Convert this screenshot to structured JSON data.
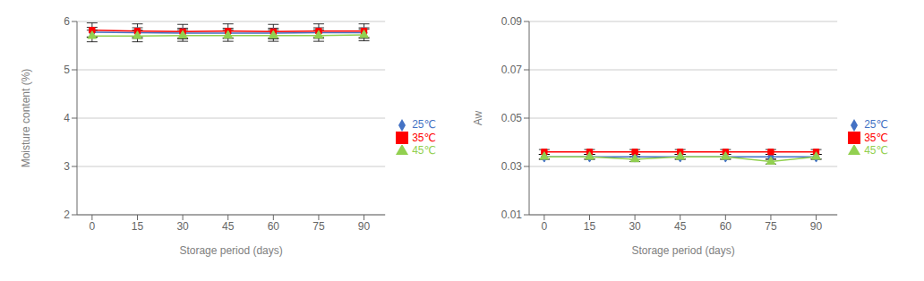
{
  "chart_data": [
    {
      "type": "line",
      "xlabel": "Storage period (days)",
      "ylabel": "Moisture content (%)",
      "x": [
        0,
        15,
        30,
        45,
        60,
        75,
        90
      ],
      "xlim": [
        -5,
        97
      ],
      "xticks": [
        0,
        15,
        30,
        45,
        60,
        75,
        90
      ],
      "ylim": [
        2,
        6
      ],
      "yticks": [
        2,
        3,
        4,
        5,
        6
      ],
      "grid": true,
      "legend": "right",
      "series": [
        {
          "name": "25℃",
          "color": "#4472C4",
          "marker": "diamond",
          "values": [
            5.78,
            5.77,
            5.76,
            5.76,
            5.76,
            5.77,
            5.77
          ],
          "errors": [
            0.1,
            0.1,
            0.1,
            0.1,
            0.1,
            0.1,
            0.1
          ]
        },
        {
          "name": "35℃",
          "color": "#FF0000",
          "marker": "square",
          "values": [
            5.82,
            5.8,
            5.79,
            5.8,
            5.79,
            5.8,
            5.8
          ],
          "errors": [
            0.15,
            0.15,
            0.15,
            0.15,
            0.15,
            0.15,
            0.15
          ]
        },
        {
          "name": "45℃",
          "color": "#92D050",
          "marker": "triangle",
          "values": [
            5.7,
            5.7,
            5.71,
            5.71,
            5.71,
            5.71,
            5.72
          ],
          "errors": [
            0.12,
            0.12,
            0.12,
            0.12,
            0.12,
            0.12,
            0.12
          ]
        }
      ]
    },
    {
      "type": "line",
      "xlabel": "Storage period (days)",
      "ylabel": "Aw",
      "x": [
        0,
        15,
        30,
        45,
        60,
        75,
        90
      ],
      "xlim": [
        -5,
        97
      ],
      "xticks": [
        0,
        15,
        30,
        45,
        60,
        75,
        90
      ],
      "ylim": [
        0.01,
        0.09
      ],
      "yticks": [
        0.01,
        0.03,
        0.05,
        0.07,
        0.09
      ],
      "grid": true,
      "legend": "right",
      "series": [
        {
          "name": "25℃",
          "color": "#4472C4",
          "marker": "diamond",
          "values": [
            0.034,
            0.034,
            0.034,
            0.034,
            0.034,
            0.034,
            0.034
          ],
          "errors": [
            0.001,
            0.001,
            0.001,
            0.001,
            0.001,
            0.001,
            0.001
          ]
        },
        {
          "name": "35℃",
          "color": "#FF0000",
          "marker": "square",
          "values": [
            0.036,
            0.036,
            0.036,
            0.036,
            0.036,
            0.036,
            0.036
          ],
          "errors": [
            0.001,
            0.001,
            0.001,
            0.001,
            0.001,
            0.001,
            0.001
          ]
        },
        {
          "name": "45℃",
          "color": "#92D050",
          "marker": "triangle",
          "values": [
            0.034,
            0.034,
            0.033,
            0.034,
            0.034,
            0.032,
            0.034
          ],
          "errors": [
            0.001,
            0.001,
            0.001,
            0.001,
            0.001,
            0.001,
            0.001
          ]
        }
      ]
    }
  ]
}
